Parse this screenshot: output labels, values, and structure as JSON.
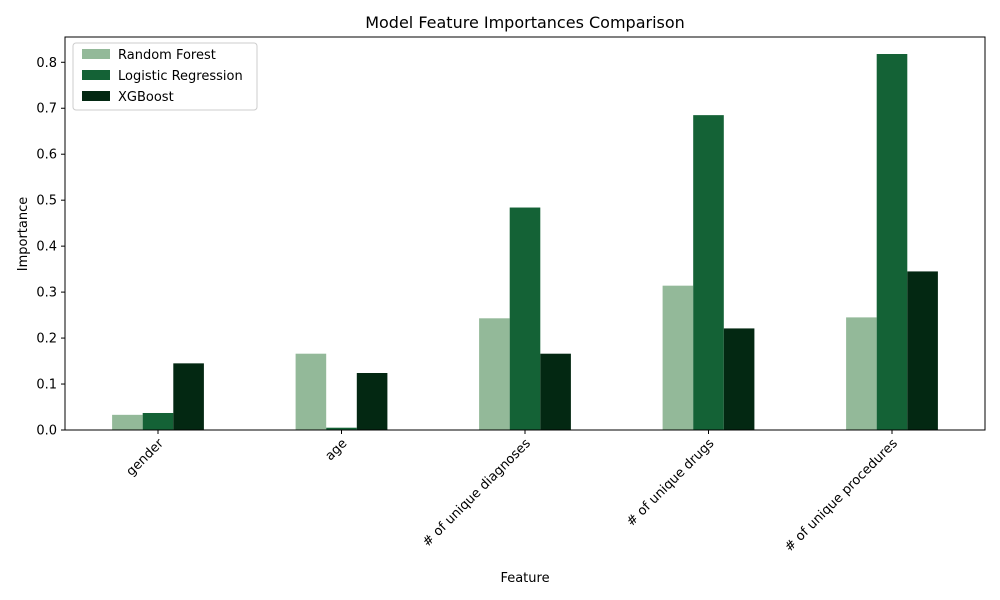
{
  "chart_data": {
    "type": "bar",
    "title": "Model Feature Importances Comparison",
    "xlabel": "Feature",
    "ylabel": "Importance",
    "categories": [
      "gender",
      "age",
      "# of unique diagnoses",
      "# of unique drugs",
      "# of unique procedures"
    ],
    "series": [
      {
        "name": "Random Forest",
        "color": "#93b999",
        "values": [
          0.033,
          0.166,
          0.243,
          0.314,
          0.245
        ]
      },
      {
        "name": "Logistic Regression",
        "color": "#146236",
        "values": [
          0.037,
          0.005,
          0.484,
          0.685,
          0.818
        ]
      },
      {
        "name": "XGBoost",
        "color": "#032812",
        "values": [
          0.145,
          0.124,
          0.166,
          0.221,
          0.345
        ]
      }
    ],
    "ylim": [
      0,
      0.855
    ],
    "yticks": [
      "0.0",
      "0.1",
      "0.2",
      "0.3",
      "0.4",
      "0.5",
      "0.6",
      "0.7",
      "0.8"
    ],
    "legend_position": "top-left",
    "grid": false
  }
}
